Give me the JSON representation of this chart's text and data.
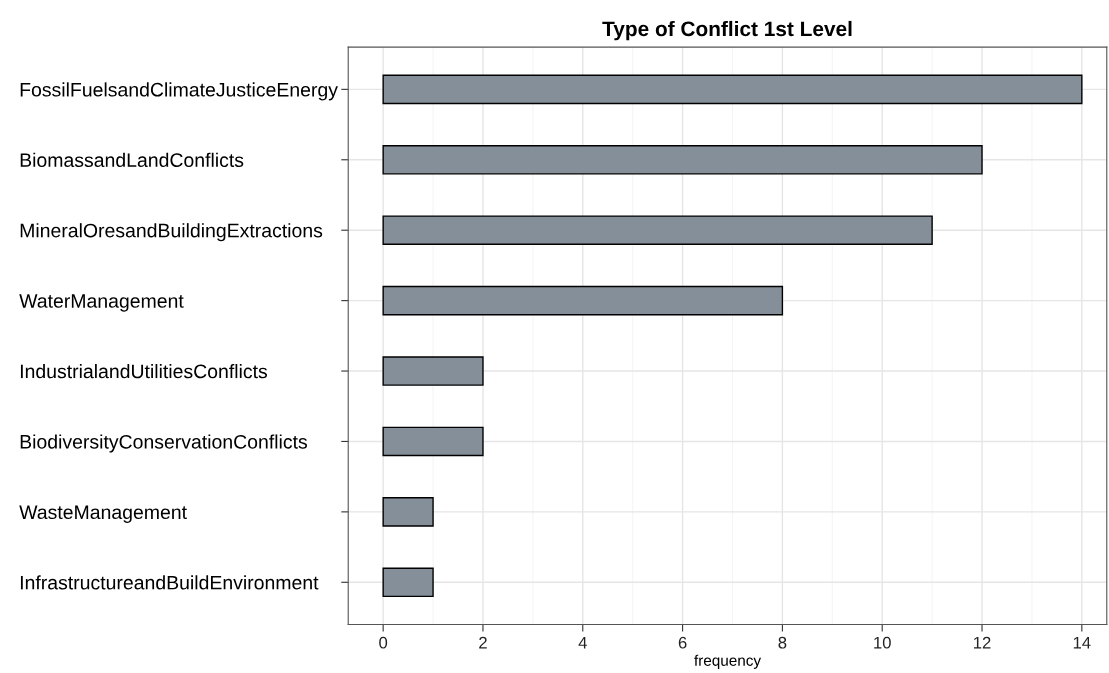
{
  "chart_data": {
    "type": "bar",
    "orientation": "horizontal",
    "title": "Type of Conflict 1st Level",
    "xlabel": "frequency",
    "categories": [
      "FossilFuelsandClimateJusticeEnergy",
      "BiomassandLandConflicts",
      "MineralOresandBuildingExtractions",
      "WaterManagement",
      "IndustrialandUtilitiesConflicts",
      "BiodiversityConservationConflicts",
      "WasteManagement",
      "InfrastructureandBuildEnvironment"
    ],
    "values": [
      14,
      12,
      11,
      8,
      2,
      2,
      1,
      1
    ],
    "color": "#848f9a",
    "xlim": [
      -0.7,
      14.5
    ],
    "xticks": [
      0,
      2,
      4,
      6,
      8,
      10,
      12,
      14
    ],
    "grid": true
  }
}
